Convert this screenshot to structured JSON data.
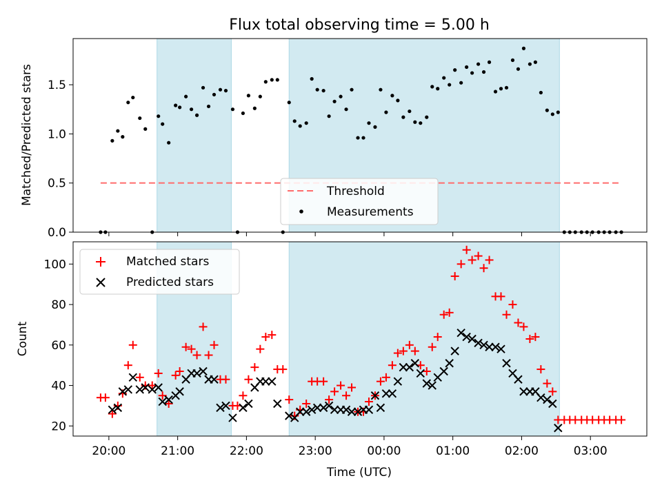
{
  "figure": {
    "title": "Flux total observing time = 5.00 h"
  },
  "colors": {
    "shade": "#add8e6",
    "threshold": "#ff6b6b",
    "measure": "#000000",
    "matched": "#ff0000",
    "predicted": "#000000",
    "axes": "#000000"
  },
  "chart_data": [
    {
      "type": "scatter",
      "ylabel": "Matched/Predicted stars",
      "xlabel": "",
      "xlim": [
        19.48,
        27.82
      ],
      "ylim": [
        0,
        1.97
      ],
      "yticks": [
        0,
        0.5,
        1.0,
        1.5
      ],
      "ytick_labels": [
        "0.0",
        "0.5",
        "1.0",
        "1.5"
      ],
      "shaded_intervals": [
        [
          20.7,
          21.78
        ],
        [
          22.62,
          26.55
        ]
      ],
      "threshold": {
        "name": "Threshold",
        "y": 0.5,
        "x_range": [
          19.88,
          27.45
        ]
      },
      "legend": {
        "placement": "lower center",
        "entries": [
          "Threshold",
          "Measurements"
        ]
      },
      "series": [
        {
          "name": "Measurements",
          "x": [
            19.88,
            19.95,
            20.05,
            20.13,
            20.2,
            20.28,
            20.35,
            20.45,
            20.53,
            20.63,
            20.72,
            20.78,
            20.87,
            20.97,
            21.03,
            21.12,
            21.2,
            21.28,
            21.37,
            21.45,
            21.53,
            21.62,
            21.7,
            21.8,
            21.87,
            21.95,
            22.03,
            22.12,
            22.2,
            22.28,
            22.37,
            22.45,
            22.53,
            22.62,
            22.7,
            22.78,
            22.87,
            22.95,
            23.03,
            23.12,
            23.2,
            23.28,
            23.37,
            23.45,
            23.53,
            23.62,
            23.7,
            23.78,
            23.87,
            23.95,
            24.03,
            24.12,
            24.2,
            24.28,
            24.37,
            24.45,
            24.53,
            24.62,
            24.7,
            24.78,
            24.87,
            24.95,
            25.03,
            25.12,
            25.2,
            25.28,
            25.37,
            25.45,
            25.53,
            25.62,
            25.7,
            25.78,
            25.87,
            25.95,
            26.03,
            26.12,
            26.2,
            26.28,
            26.37,
            26.45,
            26.53,
            26.62,
            26.7,
            26.78,
            26.87,
            26.95,
            27.03,
            27.12,
            27.2,
            27.28,
            27.37,
            27.45
          ],
          "y": [
            0,
            0,
            0.93,
            1.03,
            0.97,
            1.32,
            1.37,
            1.16,
            1.05,
            0,
            1.18,
            1.1,
            0.91,
            1.29,
            1.27,
            1.38,
            1.25,
            1.19,
            1.47,
            1.28,
            1.4,
            1.45,
            1.44,
            1.25,
            0,
            1.21,
            1.39,
            1.26,
            1.38,
            1.53,
            1.55,
            1.55,
            0,
            1.32,
            1.13,
            1.08,
            1.11,
            1.56,
            1.45,
            1.44,
            1.18,
            1.33,
            1.38,
            1.25,
            1.45,
            0.96,
            0.96,
            1.11,
            1.07,
            1.45,
            1.22,
            1.39,
            1.34,
            1.17,
            1.23,
            1.12,
            1.11,
            1.17,
            1.48,
            1.46,
            1.57,
            1.5,
            1.65,
            1.52,
            1.68,
            1.62,
            1.71,
            1.63,
            1.73,
            1.43,
            1.46,
            1.47,
            1.75,
            1.66,
            1.87,
            1.71,
            1.73,
            1.42,
            1.24,
            1.2,
            1.22,
            0,
            0,
            0,
            0,
            0,
            0,
            0,
            0,
            0,
            0,
            0
          ]
        }
      ]
    },
    {
      "type": "scatter",
      "ylabel": "Count",
      "xlabel": "Time (UTC)",
      "xlim": [
        19.48,
        27.82
      ],
      "ylim": [
        15,
        111
      ],
      "yticks": [
        20,
        40,
        60,
        80,
        100
      ],
      "ytick_labels": [
        "20",
        "40",
        "60",
        "80",
        "100"
      ],
      "xticks": [
        20,
        21,
        22,
        23,
        24,
        25,
        26,
        27
      ],
      "xtick_labels": [
        "20:00",
        "21:00",
        "22:00",
        "23:00",
        "00:00",
        "01:00",
        "02:00",
        "03:00"
      ],
      "shaded_intervals": [
        [
          20.7,
          21.78
        ],
        [
          22.62,
          26.55
        ]
      ],
      "legend": {
        "placement": "upper left",
        "entries": [
          "Matched stars",
          "Predicted stars"
        ]
      },
      "series": [
        {
          "name": "Matched stars",
          "x": [
            19.88,
            19.95,
            20.05,
            20.13,
            20.2,
            20.28,
            20.35,
            20.45,
            20.53,
            20.63,
            20.72,
            20.78,
            20.87,
            20.97,
            21.03,
            21.12,
            21.2,
            21.28,
            21.37,
            21.45,
            21.53,
            21.62,
            21.7,
            21.8,
            21.87,
            21.95,
            22.03,
            22.12,
            22.2,
            22.28,
            22.37,
            22.45,
            22.53,
            22.62,
            22.7,
            22.78,
            22.87,
            22.95,
            23.03,
            23.12,
            23.2,
            23.28,
            23.37,
            23.45,
            23.53,
            23.62,
            23.7,
            23.78,
            23.87,
            23.95,
            24.03,
            24.12,
            24.2,
            24.28,
            24.37,
            24.45,
            24.53,
            24.62,
            24.7,
            24.78,
            24.87,
            24.95,
            25.03,
            25.12,
            25.2,
            25.28,
            25.37,
            25.45,
            25.53,
            25.62,
            25.7,
            25.78,
            25.87,
            25.95,
            26.03,
            26.12,
            26.2,
            26.28,
            26.37,
            26.45,
            26.53,
            26.62,
            26.7,
            26.78,
            26.87,
            26.95,
            27.03,
            27.12,
            27.2,
            27.28,
            27.37,
            27.45
          ],
          "y": [
            34,
            34,
            26,
            30,
            36,
            50,
            60,
            44,
            40,
            40,
            46,
            35,
            31,
            45,
            47,
            59,
            58,
            55,
            69,
            55,
            60,
            43,
            43,
            30,
            30,
            35,
            43,
            49,
            58,
            64,
            65,
            48,
            48,
            33,
            25,
            28,
            31,
            42,
            42,
            42,
            33,
            37,
            40,
            35,
            39,
            27,
            27,
            32,
            35,
            42,
            44,
            50,
            56,
            57,
            60,
            57,
            50,
            47,
            59,
            64,
            75,
            76,
            94,
            100,
            107,
            102,
            104,
            98,
            102,
            84,
            84,
            75,
            80,
            71,
            69,
            63,
            64,
            48,
            41,
            37,
            23,
            23,
            23,
            23,
            23,
            23,
            23,
            23,
            23,
            23,
            23,
            23
          ]
        },
        {
          "name": "Predicted stars",
          "x": [
            20.05,
            20.13,
            20.2,
            20.28,
            20.35,
            20.45,
            20.53,
            20.63,
            20.72,
            20.78,
            20.87,
            20.97,
            21.03,
            21.12,
            21.2,
            21.28,
            21.37,
            21.45,
            21.53,
            21.62,
            21.7,
            21.8,
            21.95,
            22.03,
            22.12,
            22.2,
            22.28,
            22.37,
            22.45,
            22.62,
            22.7,
            22.78,
            22.87,
            22.95,
            23.03,
            23.12,
            23.2,
            23.28,
            23.37,
            23.45,
            23.53,
            23.62,
            23.7,
            23.78,
            23.87,
            23.95,
            24.03,
            24.12,
            24.2,
            24.28,
            24.37,
            24.45,
            24.53,
            24.62,
            24.7,
            24.78,
            24.87,
            24.95,
            25.03,
            25.12,
            25.2,
            25.28,
            25.37,
            25.45,
            25.53,
            25.62,
            25.7,
            25.78,
            25.87,
            25.95,
            26.03,
            26.12,
            26.2,
            26.28,
            26.37,
            26.45,
            26.53
          ],
          "y": [
            28,
            29,
            37,
            38,
            44,
            38,
            39,
            38,
            39,
            32,
            33,
            35,
            37,
            43,
            46,
            46,
            47,
            43,
            43,
            29,
            30,
            24,
            29,
            31,
            39,
            42,
            42,
            42,
            31,
            25,
            24,
            27,
            27,
            28,
            29,
            29,
            30,
            28,
            28,
            28,
            27,
            27,
            28,
            28,
            35,
            29,
            36,
            36,
            42,
            49,
            49,
            51,
            46,
            41,
            40,
            44,
            47,
            51,
            57,
            66,
            64,
            63,
            61,
            60,
            59,
            59,
            58,
            51,
            46,
            43,
            37,
            37,
            37,
            34,
            33,
            31,
            19
          ]
        }
      ]
    }
  ]
}
